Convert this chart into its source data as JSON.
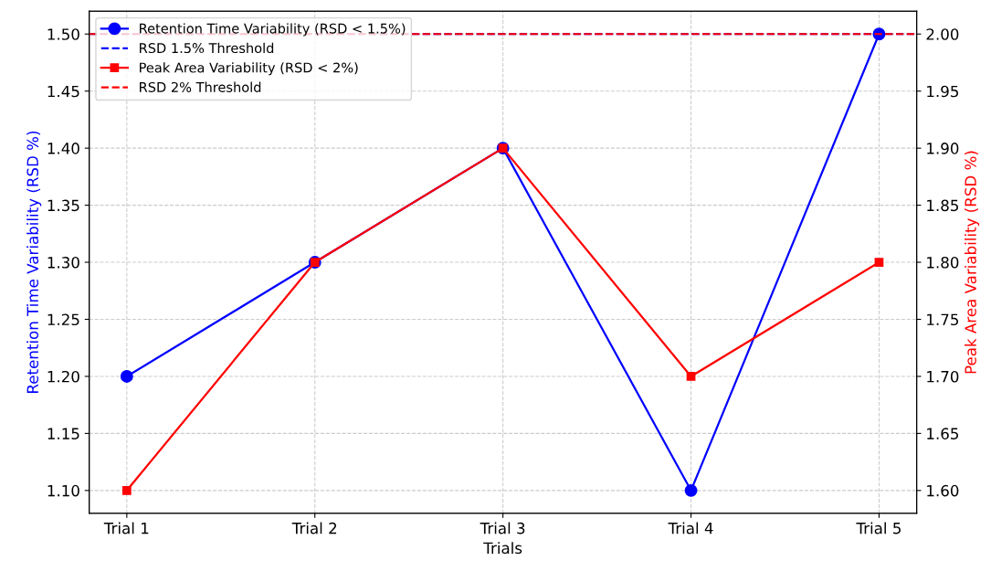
{
  "chart_data": {
    "type": "line",
    "xlabel": "Trials",
    "ylabel": "Retention Time Variability (RSD %)",
    "y2label": "Peak Area Variability (RSD %)",
    "categories": [
      "Trial 1",
      "Trial 2",
      "Trial 3",
      "Trial 4",
      "Trial 5"
    ],
    "series": [
      {
        "name": "Retention Time Variability (RSD < 1.5%)",
        "color": "#0000ff",
        "values": [
          1.2,
          1.3,
          1.4,
          1.1,
          1.5
        ],
        "marker": "circle"
      },
      {
        "name": "Peak Area Variability (RSD < 2%)",
        "color": "#ff0000",
        "values": [
          1.6,
          1.8,
          1.9,
          1.7,
          1.8
        ],
        "marker": "square",
        "axis": "y2"
      }
    ],
    "ref_lines": [
      {
        "axis": "y",
        "value": 1.5,
        "label": "RSD 1.5% Threshold",
        "color": "#0000ff",
        "line_style": "dashed"
      },
      {
        "axis": "y2",
        "value": 2.0,
        "label": "RSD 2% Threshold",
        "color": "#ff0000",
        "line_style": "dashed"
      }
    ],
    "ylim": [
      1.08,
      1.52
    ],
    "yticks": [
      {
        "value": 1.1,
        "label": "1.10"
      },
      {
        "value": 1.15,
        "label": "1.15"
      },
      {
        "value": 1.2,
        "label": "1.20"
      },
      {
        "value": 1.25,
        "label": "1.25"
      },
      {
        "value": 1.3,
        "label": "1.30"
      },
      {
        "value": 1.35,
        "label": "1.35"
      },
      {
        "value": 1.4,
        "label": "1.40"
      },
      {
        "value": 1.45,
        "label": "1.45"
      },
      {
        "value": 1.5,
        "label": "1.50"
      }
    ],
    "y2lim": [
      1.58,
      2.02
    ],
    "y2ticks": [
      {
        "value": 1.6,
        "label": "1.60"
      },
      {
        "value": 1.65,
        "label": "1.65"
      },
      {
        "value": 1.7,
        "label": "1.70"
      },
      {
        "value": 1.75,
        "label": "1.75"
      },
      {
        "value": 1.8,
        "label": "1.80"
      },
      {
        "value": 1.85,
        "label": "1.85"
      },
      {
        "value": 1.9,
        "label": "1.90"
      },
      {
        "value": 1.95,
        "label": "1.95"
      },
      {
        "value": 2.0,
        "label": "2.00"
      }
    ],
    "grid": true,
    "legend": "top left",
    "line_style": "solid"
  }
}
